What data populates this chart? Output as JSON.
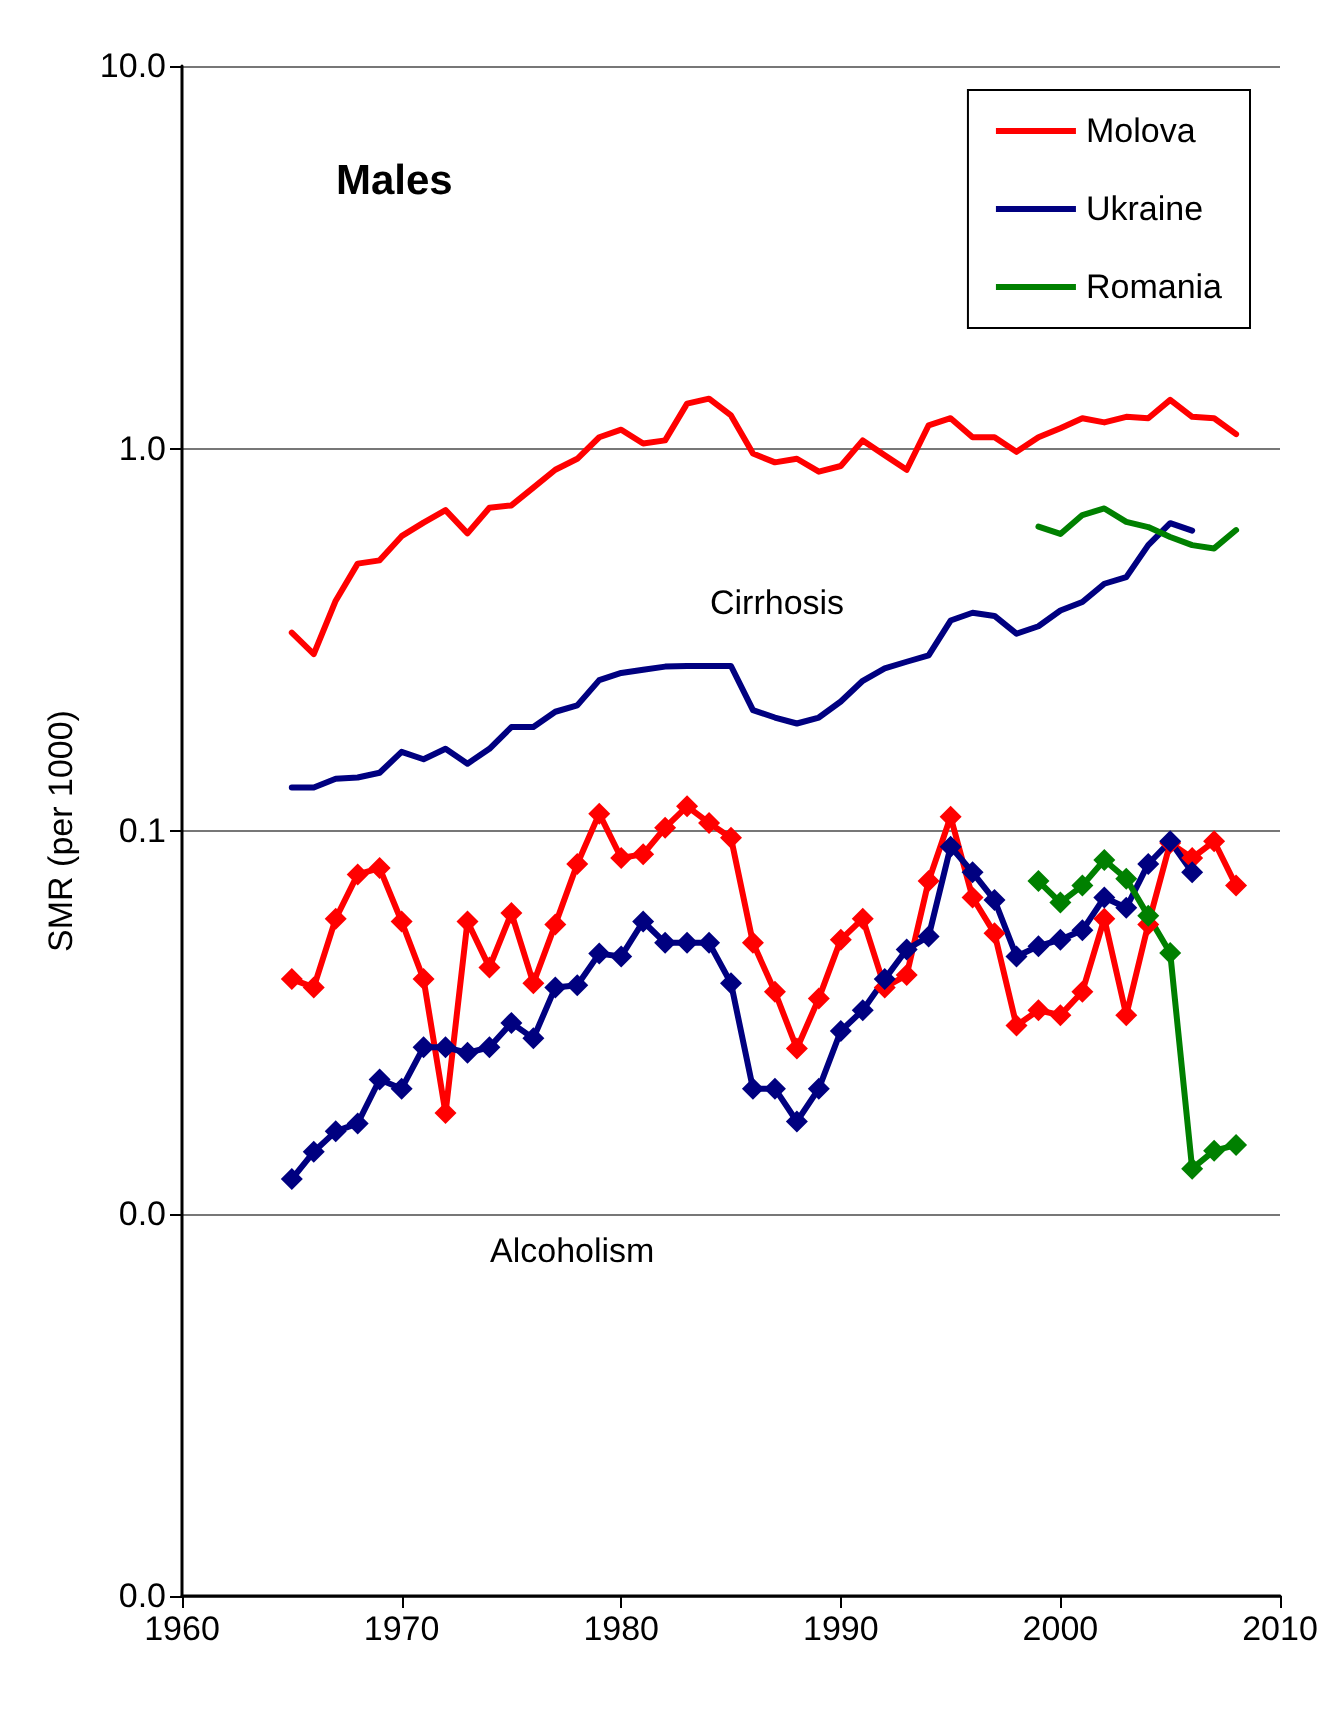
{
  "chart_data": {
    "type": "line",
    "title": "Males",
    "ylabel": "SMR (per 1000)",
    "xlim": [
      1960,
      2010
    ],
    "xticks": [
      1960,
      1970,
      1980,
      1990,
      2000,
      2010
    ],
    "ylim": [
      0.001,
      10
    ],
    "yticks": [
      {
        "value": 0.001,
        "label": "0.0"
      },
      {
        "value": 0.01,
        "label": "0.0"
      },
      {
        "value": 0.1,
        "label": "0.1"
      },
      {
        "value": 1,
        "label": "1.0"
      },
      {
        "value": 10,
        "label": "10.0"
      }
    ],
    "log": "y",
    "grid": "y",
    "legend": "top right",
    "line_style": "solid",
    "annotations": [
      "Cirrhosis",
      "Alcoholism"
    ],
    "series": [
      {
        "name": "Molova",
        "color": "#ff0000",
        "marker": "none",
        "x": [
          1965,
          1966,
          1967,
          1968,
          1969,
          1970,
          1971,
          1972,
          1973,
          1974,
          1975,
          1976,
          1977,
          1978,
          1979,
          1980,
          1981,
          1982,
          1983,
          1984,
          1985,
          1986,
          1987,
          1988,
          1989,
          1990,
          1991,
          1992,
          1993,
          1994,
          1995,
          1996,
          1997,
          1998,
          1999,
          2000,
          2001,
          2002,
          2003,
          2004,
          2005,
          2006,
          2007,
          2008
        ],
        "values": [
          0.33,
          0.29,
          0.4,
          0.5,
          0.51,
          0.59,
          0.64,
          0.69,
          0.6,
          0.7,
          0.71,
          0.79,
          0.88,
          0.94,
          1.07,
          1.12,
          1.03,
          1.05,
          1.31,
          1.35,
          1.22,
          0.97,
          0.92,
          0.94,
          0.87,
          0.9,
          1.05,
          0.96,
          0.88,
          1.15,
          1.2,
          1.07,
          1.07,
          0.98,
          1.07,
          1.13,
          1.2,
          1.17,
          1.21,
          1.2,
          1.34,
          1.21,
          1.2,
          1.09
        ]
      },
      {
        "name": "Ukraine",
        "color": "#000080",
        "marker": "none",
        "x": [
          1965,
          1966,
          1967,
          1968,
          1969,
          1970,
          1971,
          1972,
          1973,
          1974,
          1975,
          1976,
          1977,
          1978,
          1979,
          1980,
          1981,
          1982,
          1983,
          1984,
          1985,
          1986,
          1987,
          1988,
          1989,
          1990,
          1991,
          1992,
          1993,
          1994,
          1995,
          1996,
          1997,
          1998,
          1999,
          2000,
          2001,
          2002,
          2003,
          2004,
          2005,
          2006
        ],
        "values": [
          0.13,
          0.13,
          0.137,
          0.138,
          0.142,
          0.161,
          0.154,
          0.164,
          0.15,
          0.164,
          0.187,
          0.187,
          0.205,
          0.213,
          0.248,
          0.259,
          0.264,
          0.269,
          0.27,
          0.27,
          0.27,
          0.207,
          0.198,
          0.191,
          0.198,
          0.218,
          0.247,
          0.266,
          0.277,
          0.288,
          0.355,
          0.372,
          0.365,
          0.328,
          0.343,
          0.377,
          0.397,
          0.443,
          0.461,
          0.559,
          0.638,
          0.61
        ]
      },
      {
        "name": "Romania",
        "color": "#008000",
        "marker": "none",
        "x": [
          1999,
          2000,
          2001,
          2002,
          2003,
          2004,
          2005,
          2006,
          2007,
          2008
        ],
        "values": [
          0.625,
          0.598,
          0.67,
          0.697,
          0.643,
          0.623,
          0.587,
          0.559,
          0.548,
          0.612
        ]
      },
      {
        "color": "#ff0000",
        "marker": "diamond",
        "x": [
          1965,
          1966,
          1967,
          1968,
          1969,
          1970,
          1971,
          1972,
          1973,
          1974,
          1975,
          1976,
          1977,
          1978,
          1979,
          1980,
          1981,
          1982,
          1983,
          1984,
          1985,
          1986,
          1987,
          1988,
          1989,
          1990,
          1991,
          1992,
          1993,
          1994,
          1995,
          1996,
          1997,
          1998,
          1999,
          2000,
          2001,
          2002,
          2003,
          2004,
          2005,
          2006,
          2007,
          2008
        ],
        "values": [
          0.041,
          0.039,
          0.059,
          0.077,
          0.08,
          0.058,
          0.041,
          0.0183,
          0.058,
          0.044,
          0.061,
          0.04,
          0.057,
          0.082,
          0.111,
          0.085,
          0.087,
          0.102,
          0.116,
          0.105,
          0.096,
          0.051,
          0.038,
          0.027,
          0.0365,
          0.052,
          0.059,
          0.039,
          0.042,
          0.074,
          0.109,
          0.067,
          0.054,
          0.031,
          0.034,
          0.033,
          0.038,
          0.059,
          0.033,
          0.057,
          0.093,
          0.085,
          0.094,
          0.072
        ]
      },
      {
        "color": "#000080",
        "marker": "diamond",
        "x": [
          1965,
          1966,
          1967,
          1968,
          1969,
          1970,
          1971,
          1972,
          1973,
          1974,
          1975,
          1976,
          1977,
          1978,
          1979,
          1980,
          1981,
          1982,
          1983,
          1984,
          1985,
          1986,
          1987,
          1988,
          1989,
          1990,
          1991,
          1992,
          1993,
          1994,
          1995,
          1996,
          1997,
          1998,
          1999,
          2000,
          2001,
          2002,
          2003,
          2004,
          2005,
          2006
        ],
        "values": [
          0.0123,
          0.0145,
          0.0164,
          0.0172,
          0.0224,
          0.0212,
          0.0272,
          0.0272,
          0.0263,
          0.0272,
          0.0315,
          0.0287,
          0.039,
          0.0395,
          0.0478,
          0.047,
          0.058,
          0.051,
          0.051,
          0.051,
          0.04,
          0.0212,
          0.0212,
          0.0174,
          0.0212,
          0.03,
          0.034,
          0.041,
          0.049,
          0.053,
          0.091,
          0.078,
          0.066,
          0.047,
          0.05,
          0.052,
          0.055,
          0.067,
          0.063,
          0.082,
          0.094,
          0.078
        ]
      },
      {
        "color": "#008000",
        "marker": "diamond",
        "x": [
          1999,
          2000,
          2001,
          2002,
          2003,
          2004,
          2005,
          2006,
          2007,
          2008
        ],
        "values": [
          0.074,
          0.065,
          0.072,
          0.084,
          0.075,
          0.06,
          0.048,
          0.0131,
          0.0146,
          0.0151
        ]
      }
    ]
  }
}
